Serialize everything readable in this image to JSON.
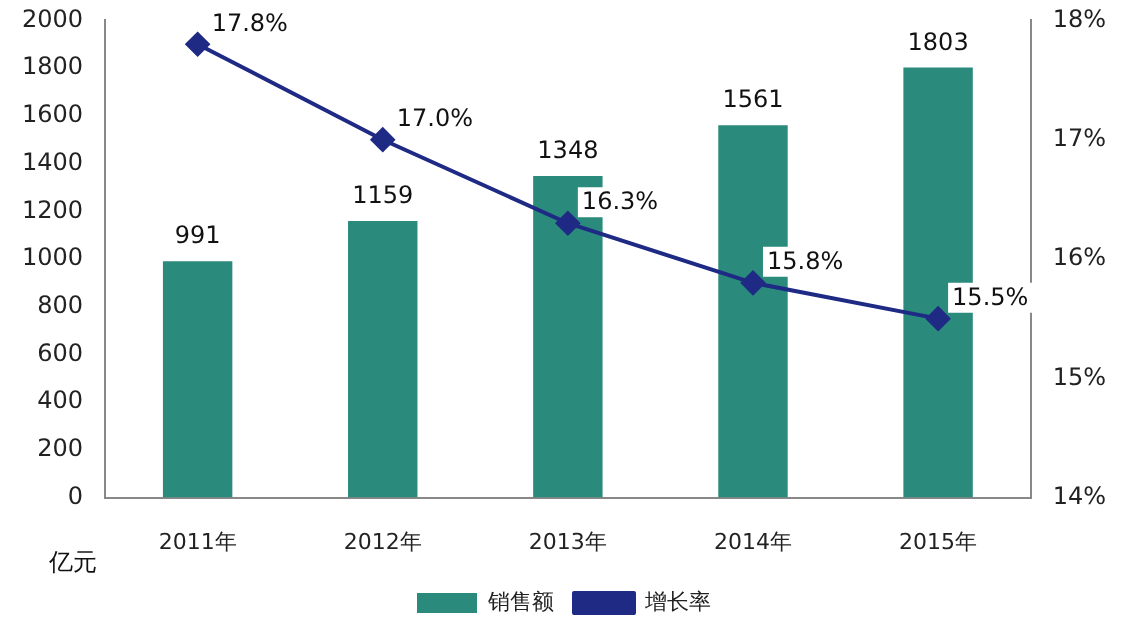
{
  "chart_data": {
    "type": "bar",
    "ylabel": "亿元",
    "categories": [
      "2011年",
      "2012年",
      "2013年",
      "2014年",
      "2015年"
    ],
    "series": [
      {
        "name": "销售额",
        "color": "#2a8a7c",
        "values": [
          991,
          1159,
          1348,
          1561,
          1803
        ],
        "value_labels": [
          "991",
          "1159",
          "1348",
          "1561",
          "1803"
        ]
      },
      {
        "name": "增长率",
        "type": "line",
        "axis": "y2",
        "color": "#1f2a85",
        "marker": "diamond",
        "values": [
          17.8,
          17.0,
          16.3,
          15.8,
          15.5
        ],
        "value_labels": [
          "17.8%",
          "17.0%",
          "16.3%",
          "15.8%",
          "15.5%"
        ]
      }
    ],
    "ylim": [
      0,
      2000
    ],
    "yticks": [
      0,
      200,
      400,
      600,
      800,
      1000,
      1200,
      1400,
      1600,
      1800,
      2000
    ],
    "y2lim": [
      14,
      18
    ],
    "y2ticks": [
      {
        "value": 14,
        "label": "14%"
      },
      {
        "value": 15,
        "label": "15%"
      },
      {
        "value": 16,
        "label": "16%"
      },
      {
        "value": 17,
        "label": "17%"
      },
      {
        "value": 18,
        "label": "18%"
      }
    ],
    "grid": false,
    "legend": "bottom"
  }
}
